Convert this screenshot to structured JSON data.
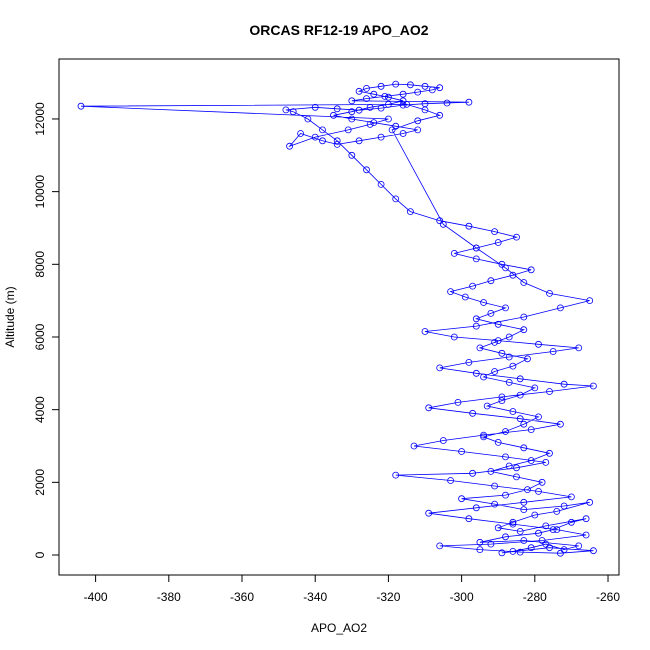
{
  "chart_data": {
    "type": "scatter",
    "title": "ORCAS RF12-19 APO_AO2",
    "xlabel": "APO_AO2",
    "ylabel": "Altitude (m)",
    "xlim": [
      -410,
      -257
    ],
    "ylim": [
      -550,
      13650
    ],
    "xticks": [
      -400,
      -380,
      -360,
      -340,
      -320,
      -300,
      -280,
      -260
    ],
    "xtick_labels": [
      "-400",
      "-380",
      "-360",
      "-340",
      "-320",
      "-300",
      "-280",
      "-260"
    ],
    "yticks": [
      0,
      2000,
      4000,
      6000,
      8000,
      10000,
      12000
    ],
    "ytick_labels": [
      "0",
      "2000",
      "4000",
      "6000",
      "8000",
      "10000",
      "12000"
    ],
    "grid": false,
    "color": "#0000ff",
    "marker": "open-circle",
    "connected": true,
    "series": [
      {
        "values": [
          [
            -286.0,
            100
          ],
          [
            -281.0,
            200
          ],
          [
            -277.0,
            300
          ],
          [
            -272.0,
            150
          ],
          [
            -268.0,
            250
          ],
          [
            -283.0,
            400
          ],
          [
            -295.0,
            350
          ],
          [
            -288.0,
            500
          ],
          [
            -279.0,
            600
          ],
          [
            -275.0,
            700
          ],
          [
            -270.0,
            900
          ],
          [
            -266.0,
            1000
          ],
          [
            -277.0,
            800
          ],
          [
            -284.0,
            650
          ],
          [
            -290.0,
            750
          ],
          [
            -286.0,
            900
          ],
          [
            -280.0,
            1100
          ],
          [
            -274.0,
            1200
          ],
          [
            -265.0,
            1450
          ],
          [
            -272.0,
            1350
          ],
          [
            -283.0,
            1250
          ],
          [
            -291.0,
            1400
          ],
          [
            -300.0,
            1550
          ],
          [
            -288.0,
            1650
          ],
          [
            -282.0,
            1800
          ],
          [
            -278.0,
            2000
          ],
          [
            -285.0,
            2150
          ],
          [
            -292.0,
            2300
          ],
          [
            -287.0,
            2450
          ],
          [
            -281.0,
            2600
          ],
          [
            -276.0,
            2800
          ],
          [
            -283.0,
            2950
          ],
          [
            -290.0,
            3100
          ],
          [
            -294.0,
            3250
          ],
          [
            -288.0,
            3400
          ],
          [
            -283.0,
            3600
          ],
          [
            -279.0,
            3800
          ],
          [
            -286.0,
            3950
          ],
          [
            -293.0,
            4100
          ],
          [
            -289.0,
            4250
          ],
          [
            -284.0,
            4400
          ],
          [
            -280.0,
            4600
          ],
          [
            -287.0,
            4750
          ],
          [
            -294.0,
            4900
          ],
          [
            -291.0,
            5050
          ],
          [
            -286.0,
            5200
          ],
          [
            -282.0,
            5400
          ],
          [
            -289.0,
            5550
          ],
          [
            -295.0,
            5700
          ],
          [
            -291.0,
            5850
          ],
          [
            -287.0,
            6000
          ],
          [
            -283.0,
            6200
          ],
          [
            -290.0,
            6350
          ],
          [
            -296.0,
            6500
          ],
          [
            -292.0,
            6650
          ],
          [
            -288.0,
            6800
          ],
          [
            -294.0,
            6950
          ],
          [
            -299.0,
            7100
          ],
          [
            -303.0,
            7250
          ],
          [
            -297.0,
            7400
          ],
          [
            -292.0,
            7550
          ],
          [
            -286.0,
            7700
          ],
          [
            -281.0,
            7850
          ],
          [
            -289.0,
            8000
          ],
          [
            -296.0,
            8150
          ],
          [
            -302.0,
            8300
          ],
          [
            -296.0,
            8450
          ],
          [
            -290.0,
            8600
          ],
          [
            -285.0,
            8750
          ],
          [
            -291.0,
            8900
          ],
          [
            -298.0,
            9050
          ],
          [
            -306.0,
            9200
          ],
          [
            -314.0,
            9450
          ],
          [
            -318.0,
            9800
          ],
          [
            -322.0,
            10200
          ],
          [
            -326.0,
            10600
          ],
          [
            -330.0,
            11000
          ],
          [
            -334.0,
            11400
          ],
          [
            -338.0,
            11700
          ],
          [
            -342.0,
            12000
          ],
          [
            -346.0,
            12200
          ],
          [
            -348.0,
            12250
          ],
          [
            -340.0,
            12320
          ],
          [
            -334.0,
            12280
          ],
          [
            -328.0,
            12240
          ],
          [
            -322.0,
            12300
          ],
          [
            -316.0,
            12380
          ],
          [
            -310.0,
            12420
          ],
          [
            -304.0,
            12440
          ],
          [
            -298.0,
            12460
          ],
          [
            -330.0,
            12500
          ],
          [
            -326.0,
            12560
          ],
          [
            -321.0,
            12620
          ],
          [
            -316.0,
            12680
          ],
          [
            -312.0,
            12740
          ],
          [
            -308.0,
            12800
          ],
          [
            -306.0,
            12860
          ],
          [
            -310.0,
            12900
          ],
          [
            -314.0,
            12940
          ],
          [
            -318.0,
            12960
          ],
          [
            -322.0,
            12900
          ],
          [
            -326.0,
            12840
          ],
          [
            -328.0,
            12760
          ],
          [
            -324.0,
            12680
          ],
          [
            -320.0,
            12600
          ],
          [
            -316.0,
            12500
          ],
          [
            -320.0,
            12400
          ],
          [
            -325.0,
            12320
          ],
          [
            -330.0,
            12200
          ],
          [
            -335.0,
            12100
          ],
          [
            -330.0,
            12000
          ],
          [
            -324.0,
            11900
          ],
          [
            -318.0,
            11800
          ],
          [
            -312.0,
            11700
          ],
          [
            -316.0,
            11600
          ],
          [
            -322.0,
            11500
          ],
          [
            -328.0,
            11400
          ],
          [
            -334.0,
            11300
          ],
          [
            -338.0,
            11400
          ],
          [
            -344.0,
            11600
          ],
          [
            -347.0,
            11250
          ],
          [
            -340.0,
            11500
          ],
          [
            -331.0,
            11700
          ],
          [
            -325.0,
            11850
          ],
          [
            -320.0,
            12000
          ],
          [
            -404.0,
            12350
          ],
          [
            -315.0,
            12400
          ],
          [
            -310.0,
            12250
          ],
          [
            -306.0,
            12100
          ],
          [
            -312.0,
            11950
          ],
          [
            -319.0,
            11700
          ],
          [
            -305.0,
            9100
          ],
          [
            -296.0,
            8450
          ],
          [
            -288.0,
            7900
          ],
          [
            -283.0,
            7500
          ],
          [
            -276.0,
            7200
          ],
          [
            -265.0,
            7000
          ],
          [
            -273.0,
            6800
          ],
          [
            -283.0,
            6550
          ],
          [
            -296.0,
            6300
          ],
          [
            -310.0,
            6150
          ],
          [
            -302.0,
            6000
          ],
          [
            -290.0,
            5900
          ],
          [
            -279.0,
            5800
          ],
          [
            -268.0,
            5700
          ],
          [
            -275.0,
            5600
          ],
          [
            -287.0,
            5450
          ],
          [
            -298.0,
            5300
          ],
          [
            -306.0,
            5150
          ],
          [
            -296.0,
            5000
          ],
          [
            -284.0,
            4850
          ],
          [
            -272.0,
            4700
          ],
          [
            -264.0,
            4650
          ],
          [
            -276.0,
            4500
          ],
          [
            -289.0,
            4350
          ],
          [
            -301.0,
            4200
          ],
          [
            -309.0,
            4050
          ],
          [
            -297.0,
            3900
          ],
          [
            -284.0,
            3750
          ],
          [
            -273.0,
            3600
          ],
          [
            -281.0,
            3450
          ],
          [
            -294.0,
            3300
          ],
          [
            -305.0,
            3150
          ],
          [
            -313.0,
            3000
          ],
          [
            -300.0,
            2850
          ],
          [
            -288.0,
            2700
          ],
          [
            -277.0,
            2550
          ],
          [
            -285.0,
            2400
          ],
          [
            -297.0,
            2250
          ],
          [
            -318.0,
            2200
          ],
          [
            -303.0,
            2050
          ],
          [
            -291.0,
            1900
          ],
          [
            -279.0,
            1750
          ],
          [
            -270.0,
            1600
          ],
          [
            -283.0,
            1450
          ],
          [
            -296.0,
            1300
          ],
          [
            -309.0,
            1150
          ],
          [
            -298.0,
            1000
          ],
          [
            -286.0,
            850
          ],
          [
            -274.0,
            700
          ],
          [
            -266.0,
            550
          ],
          [
            -278.0,
            400
          ],
          [
            -292.0,
            300
          ],
          [
            -306.0,
            250
          ],
          [
            -295.0,
            150
          ],
          [
            -284.0,
            80
          ],
          [
            -273.0,
            50
          ],
          [
            -264.0,
            120
          ],
          [
            -276.0,
            200
          ],
          [
            -289.0,
            60
          ]
        ]
      }
    ]
  }
}
